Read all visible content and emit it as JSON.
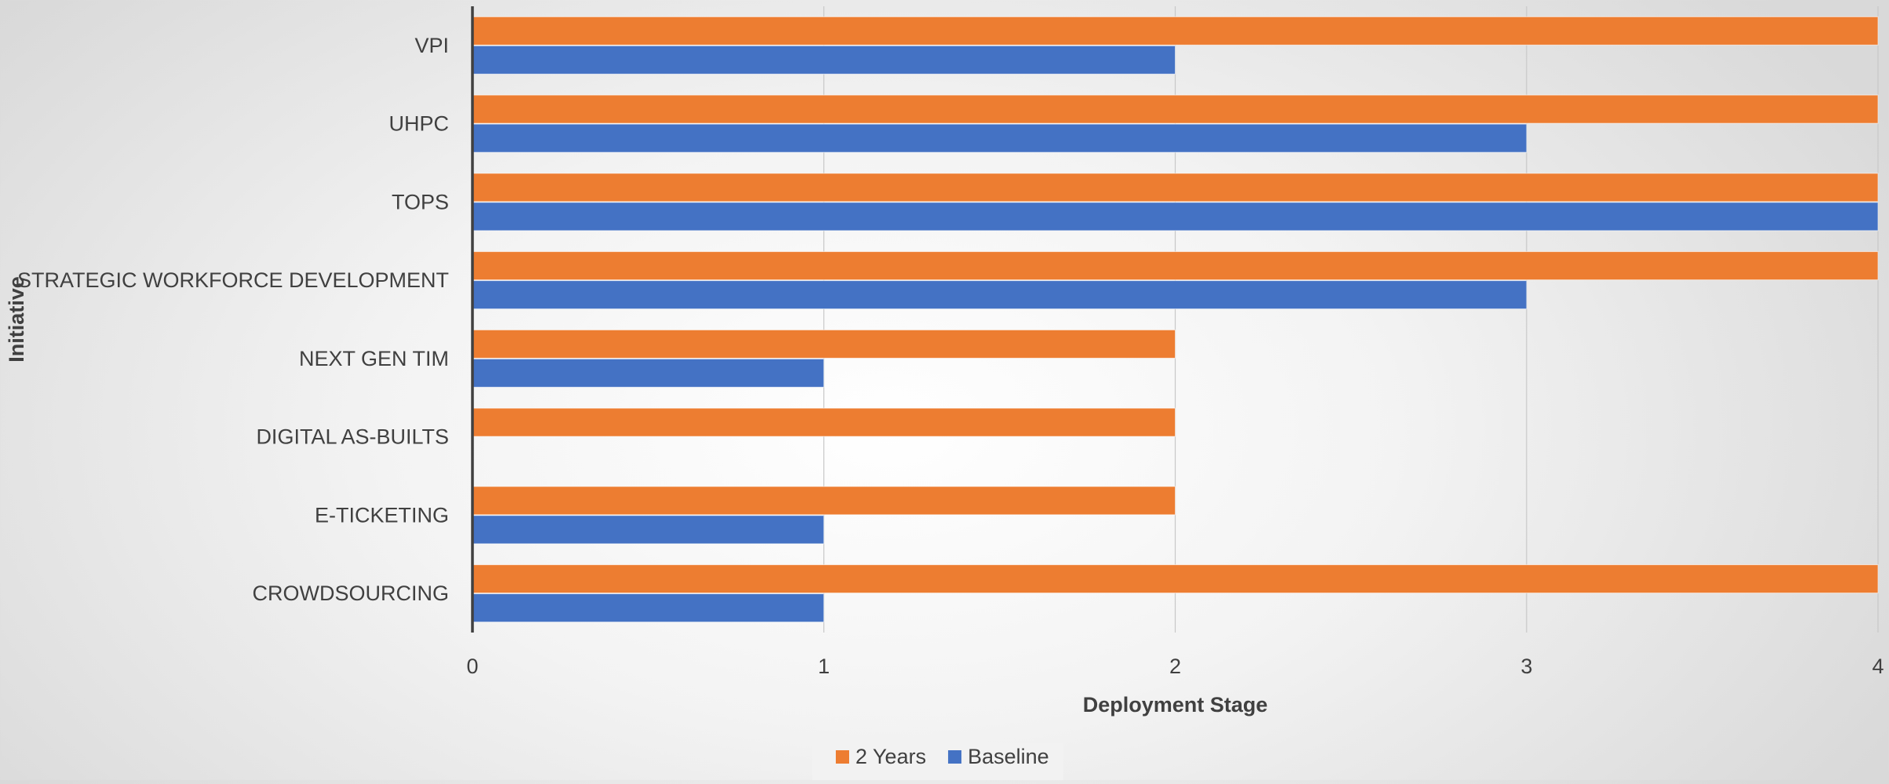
{
  "chart_data": {
    "type": "bar",
    "orientation": "horizontal",
    "title": "",
    "xlabel": "Deployment Stage",
    "ylabel": "Initiative",
    "xlim": [
      0,
      4
    ],
    "xticks": [
      "0",
      "1",
      "2",
      "3",
      "4"
    ],
    "grid": "vertical",
    "legend_position": "bottom",
    "categories": [
      "VPI",
      "UHPC",
      "TOPS",
      "STRATEGIC WORKFORCE DEVELOPMENT",
      "NEXT GEN TIM",
      "DIGITAL AS-BUILTS",
      "E-TICKETING",
      "CROWDSOURCING"
    ],
    "series": [
      {
        "name": "2 Years",
        "color": "#ED7D31",
        "values": [
          4,
          4,
          4,
          4,
          2,
          2,
          2,
          4
        ]
      },
      {
        "name": "Baseline",
        "color": "#4472C4",
        "values": [
          2,
          3,
          4,
          3,
          1,
          0,
          1,
          1
        ]
      }
    ]
  }
}
